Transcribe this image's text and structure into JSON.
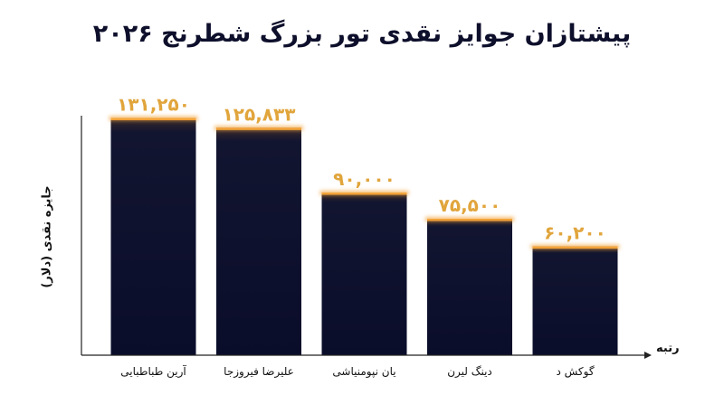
{
  "chart_data": {
    "type": "bar",
    "title": "پیشتازان جوایز نقدی تور بزرگ شطرنج ۲۰۲۶",
    "xlabel": "رتبه",
    "ylabel": "جایزه نقدی (دلار)",
    "categories": [
      "آرین طباطبایی",
      "علیرضا فیروزجا",
      "یان نپومنیاشی",
      "دینگ لیرن",
      "گوکش د"
    ],
    "values": [
      131250,
      125833,
      90000,
      75500,
      60200
    ],
    "value_labels": [
      "۱۳۱,۲۵۰",
      "۱۲۵,۸۳۳",
      "۹۰,۰۰۰",
      "۷۵,۵۰۰",
      "۶۰,۲۰۰"
    ],
    "ylim": [
      0,
      150000
    ],
    "grid": false,
    "colors": {
      "bar": "#0c0f2e",
      "accent": "#f2a33a",
      "label": "#e1a53c"
    }
  }
}
